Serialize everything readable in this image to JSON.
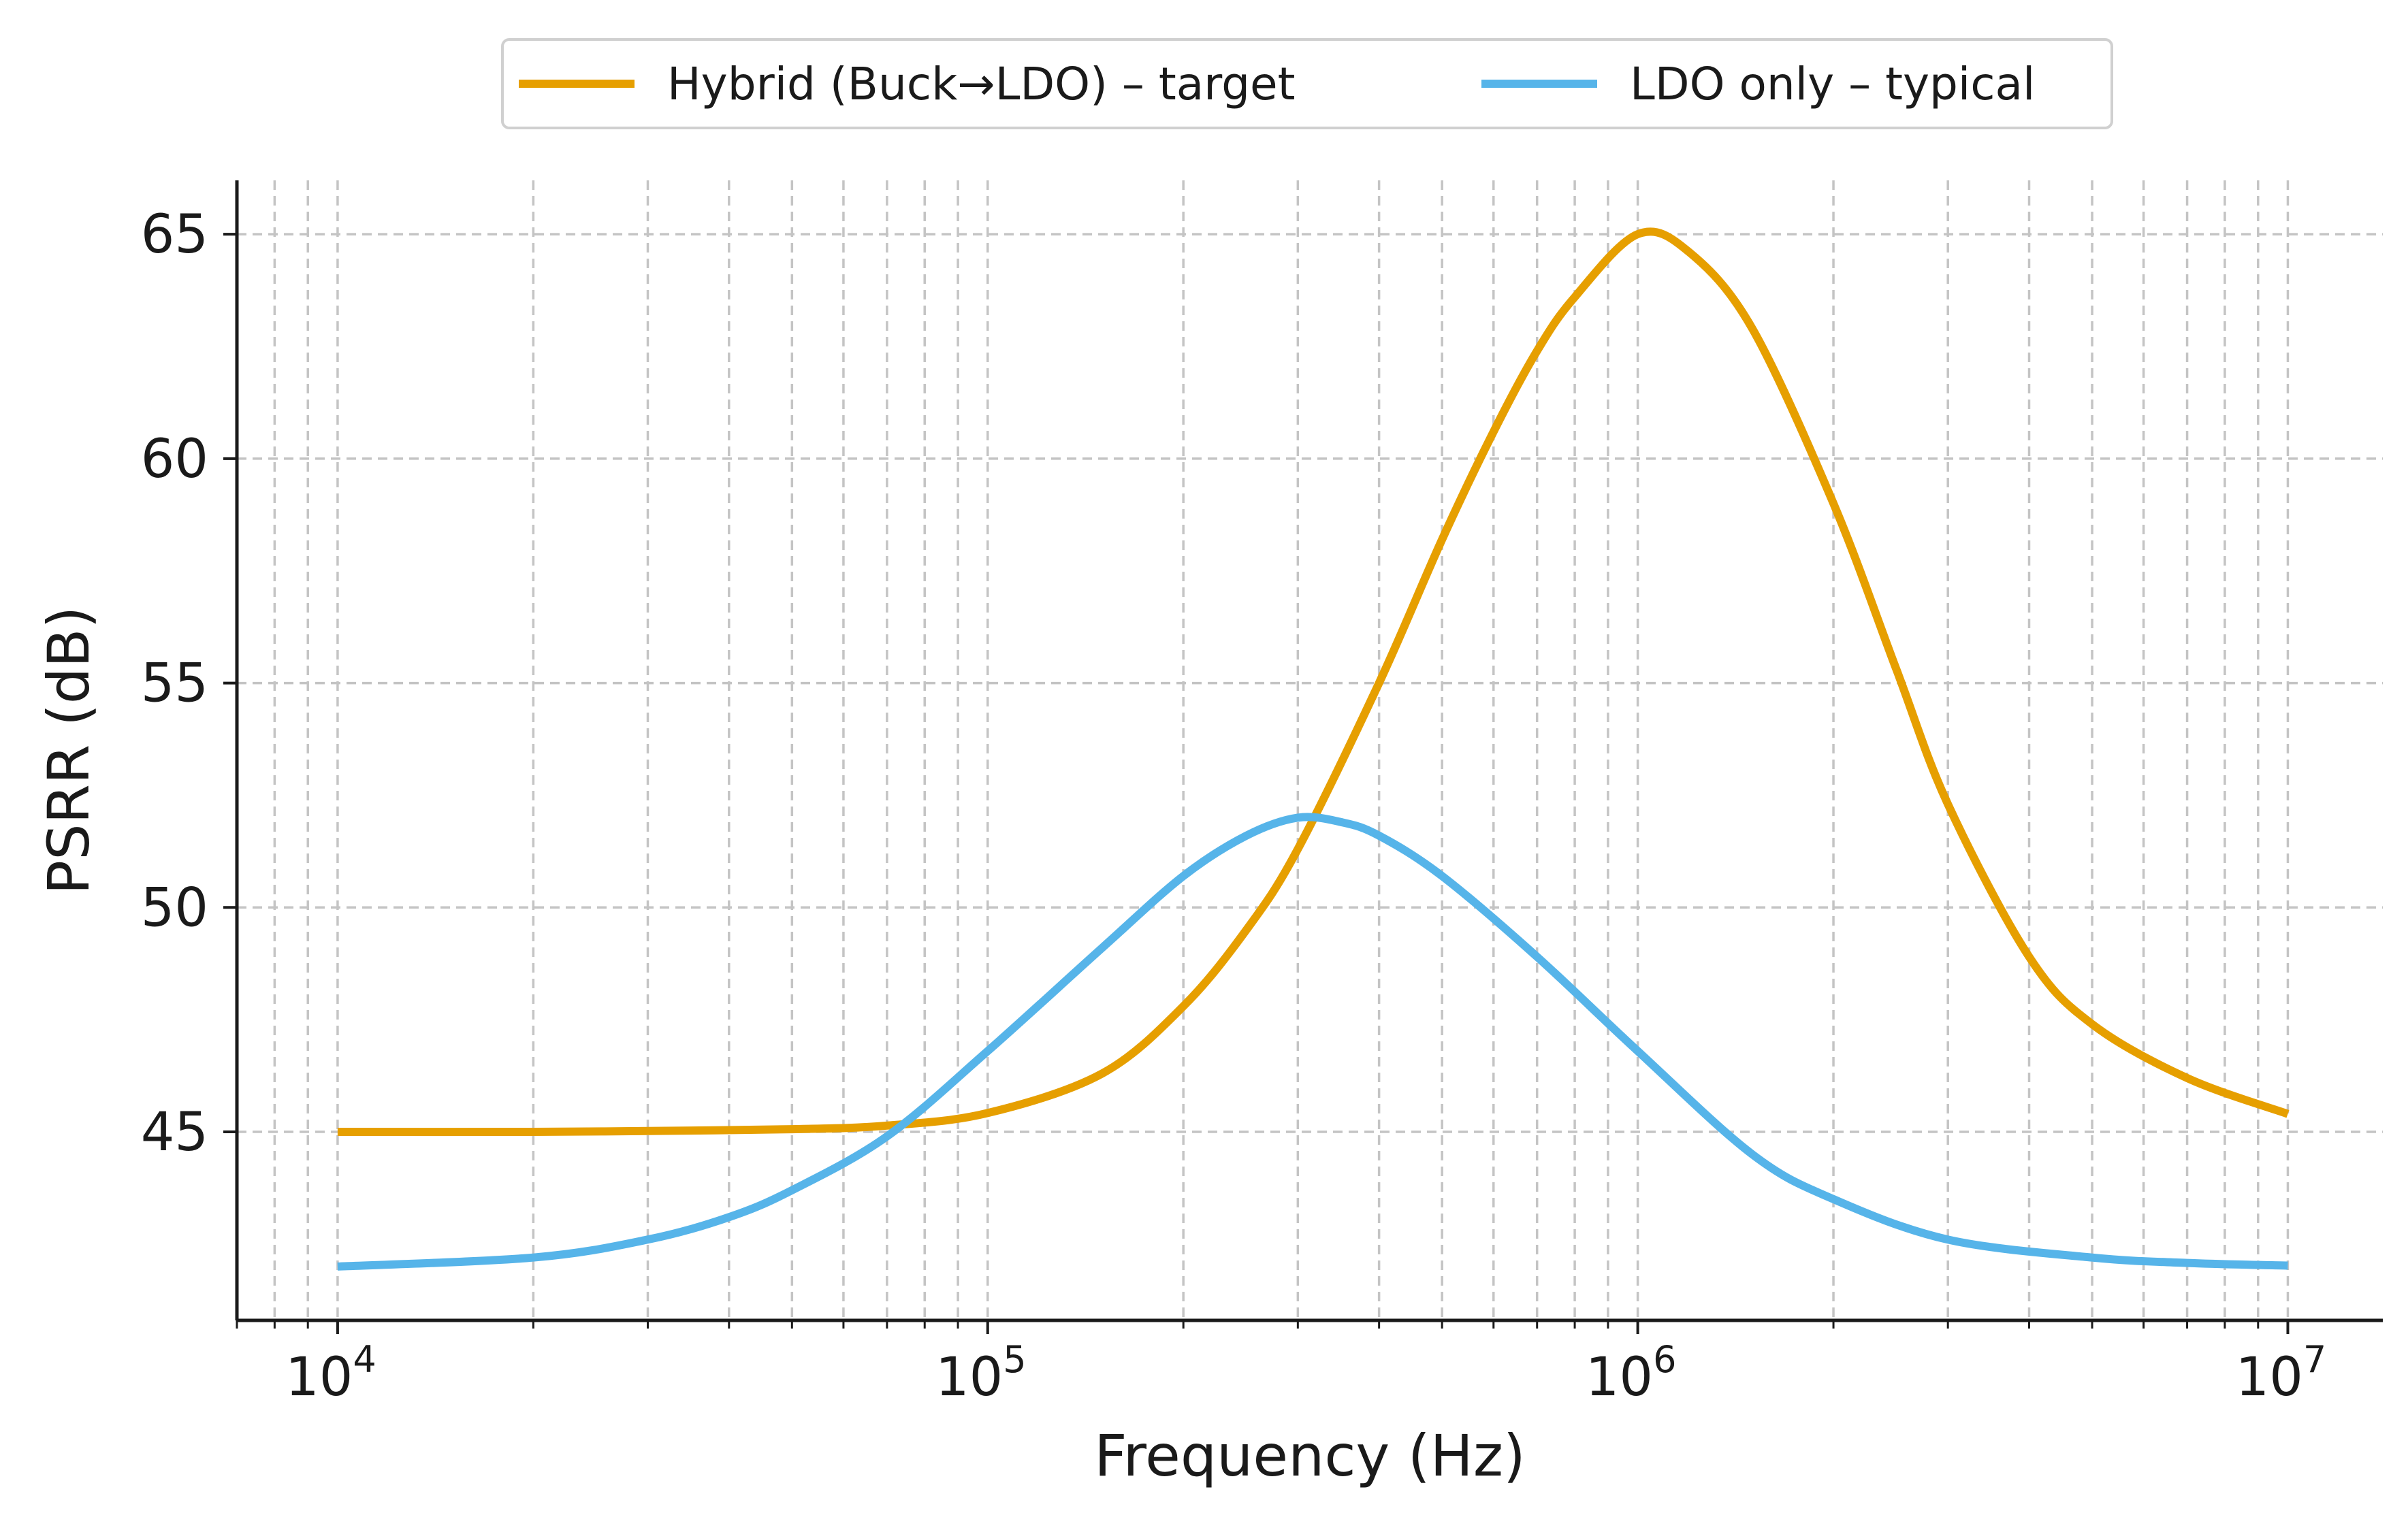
{
  "chart_data": {
    "type": "line",
    "title": "",
    "xlabel": "Frequency (Hz)",
    "ylabel": "PSRR (dB)",
    "x_scale": "log",
    "xlim": [
      7000,
      14000000
    ],
    "ylim": [
      40.8,
      66.2
    ],
    "x_ticks": [
      {
        "value": 10000,
        "base": "10",
        "exp": "4"
      },
      {
        "value": 100000,
        "base": "10",
        "exp": "5"
      },
      {
        "value": 1000000,
        "base": "10",
        "exp": "6"
      },
      {
        "value": 10000000,
        "base": "10",
        "exp": "7"
      }
    ],
    "y_ticks": [
      {
        "value": 45,
        "label": "45"
      },
      {
        "value": 50,
        "label": "50"
      },
      {
        "value": 55,
        "label": "55"
      },
      {
        "value": 60,
        "label": "60"
      },
      {
        "value": 65,
        "label": "65"
      }
    ],
    "grid": true,
    "legend_position": "top-center-outside",
    "series": [
      {
        "name": "Hybrid (Buck→LDO) – target",
        "color": "#E69F00",
        "x": [
          10000,
          20000,
          30000,
          50000,
          70000,
          100000,
          150000,
          200000,
          250000,
          300000,
          400000,
          500000,
          600000,
          700000,
          800000,
          1000000,
          1200000,
          1500000,
          2000000,
          2500000,
          3000000,
          4000000,
          5000000,
          7000000,
          10000000
        ],
        "y": [
          45.0,
          45.0,
          45.02,
          45.06,
          45.14,
          45.42,
          46.3,
          47.8,
          49.5,
          51.3,
          55.0,
          58.2,
          60.6,
          62.4,
          63.6,
          65.0,
          64.6,
          62.9,
          59.0,
          55.3,
          52.3,
          48.9,
          47.4,
          46.2,
          45.4
        ]
      },
      {
        "name": "LDO only – typical",
        "color": "#56B4E9",
        "x": [
          10000,
          20000,
          30000,
          40000,
          50000,
          70000,
          100000,
          150000,
          200000,
          250000,
          300000,
          350000,
          400000,
          500000,
          700000,
          1000000,
          1500000,
          2000000,
          3000000,
          5000000,
          7000000,
          10000000
        ],
        "y": [
          42.0,
          42.2,
          42.6,
          43.1,
          43.7,
          44.9,
          46.8,
          49.1,
          50.7,
          51.6,
          52.0,
          51.9,
          51.6,
          50.7,
          48.9,
          46.8,
          44.5,
          43.5,
          42.6,
          42.2,
          42.08,
          42.02
        ]
      }
    ]
  }
}
